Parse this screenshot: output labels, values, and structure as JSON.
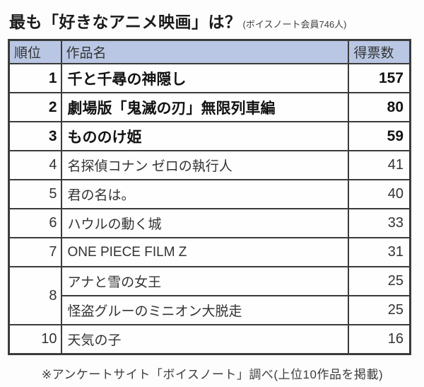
{
  "title": {
    "main": "最も「好きなアニメ映画」は？",
    "sub": "(ボイスノート会員746人)"
  },
  "table": {
    "headers": {
      "rank": "順位",
      "name": "作品名",
      "votes": "得票数"
    },
    "rows": [
      {
        "rank": "1",
        "rowspan": 1,
        "name": "千と千尋の神隠し",
        "votes": "157",
        "bold": true
      },
      {
        "rank": "2",
        "rowspan": 1,
        "name": "劇場版「鬼滅の刃」無限列車編",
        "votes": "80",
        "bold": true
      },
      {
        "rank": "3",
        "rowspan": 1,
        "name": "もののけ姫",
        "votes": "59",
        "bold": true
      },
      {
        "rank": "4",
        "rowspan": 1,
        "name": "名探偵コナン ゼロの執行人",
        "votes": "41",
        "bold": false
      },
      {
        "rank": "5",
        "rowspan": 1,
        "name": "君の名は。",
        "votes": "40",
        "bold": false
      },
      {
        "rank": "6",
        "rowspan": 1,
        "name": "ハウルの動く城",
        "votes": "33",
        "bold": false
      },
      {
        "rank": "7",
        "rowspan": 1,
        "name": "ONE PIECE FILM Z",
        "votes": "31",
        "bold": false
      },
      {
        "rank": "8",
        "rowspan": 2,
        "name": "アナと雪の女王",
        "votes": "25",
        "bold": false
      },
      {
        "rank": null,
        "rowspan": 0,
        "name": "怪盗グルーのミニオン大脱走",
        "votes": "25",
        "bold": false
      },
      {
        "rank": "10",
        "rowspan": 1,
        "name": "天気の子",
        "votes": "16",
        "bold": false
      }
    ]
  },
  "footer": {
    "note": "※アンケートサイト「ボイスノート」調べ(上位10作品を掲載)"
  },
  "colors": {
    "header_bg": "#b9c7e4",
    "border": "#3b3b3b",
    "text": "#333333",
    "top3_text": "#121212"
  },
  "chart_data": {
    "type": "table",
    "title": "最も「好きなアニメ映画」は？",
    "subtitle": "ボイスノート会員746人",
    "columns": [
      "順位",
      "作品名",
      "得票数"
    ],
    "rows": [
      [
        1,
        "千と千尋の神隠し",
        157
      ],
      [
        2,
        "劇場版「鬼滅の刃」無限列車編",
        80
      ],
      [
        3,
        "もののけ姫",
        59
      ],
      [
        4,
        "名探偵コナン ゼロの執行人",
        41
      ],
      [
        5,
        "君の名は。",
        40
      ],
      [
        6,
        "ハウルの動く城",
        33
      ],
      [
        7,
        "ONE PIECE FILM Z",
        31
      ],
      [
        8,
        "アナと雪の女王",
        25
      ],
      [
        8,
        "怪盗グルーのミニオン大脱走",
        25
      ],
      [
        10,
        "天気の子",
        16
      ]
    ],
    "note": "※アンケートサイト「ボイスノート」調べ(上位10作品を掲載)"
  }
}
